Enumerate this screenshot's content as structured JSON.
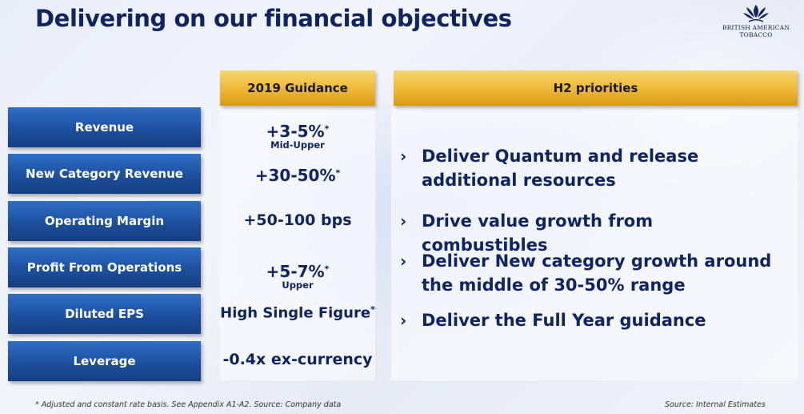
{
  "title": "Delivering on our financial objectives",
  "logo": {
    "line1": "British American",
    "line2": "Tobacco",
    "icon": "leaf-crest-icon"
  },
  "guidance_header": "2019 Guidance",
  "priorities_header": "H2 priorities",
  "rows": [
    {
      "label": "Revenue",
      "value": "+3-5%",
      "asterisk": "*",
      "sub": "Mid-Upper"
    },
    {
      "label": "New Category Revenue",
      "value": "+30-50%",
      "asterisk": "*",
      "sub": ""
    },
    {
      "label": "Operating Margin",
      "value": "+50-100 bps",
      "asterisk": "",
      "sub": ""
    },
    {
      "label": "Profit From Operations",
      "value": "+5-7%",
      "asterisk": "*",
      "sub": "Upper"
    },
    {
      "label": "Diluted EPS",
      "value": "High Single Figure",
      "asterisk": "*",
      "sub": ""
    },
    {
      "label": "Leverage",
      "value": "-0.4x ex-currency",
      "asterisk": "",
      "sub": ""
    }
  ],
  "priorities": [
    {
      "chevron": "›",
      "text": "Deliver Quantum and release additional resources"
    },
    {
      "chevron": "›",
      "text": "Drive value growth from combustibles"
    },
    {
      "chevron": "›",
      "text": "Deliver New category growth around the middle of 30-50% range"
    },
    {
      "chevron": "›",
      "text": "Deliver the Full Year guidance"
    }
  ],
  "footnote_left": "* Adjusted and constant rate basis. See Appendix A1-A2. Source: Company data",
  "footnote_right": "Source: Internal Estimates",
  "colors": {
    "title": "#0e2463",
    "row_button": "#1d4f9f",
    "gold_header": "#eeb734"
  }
}
